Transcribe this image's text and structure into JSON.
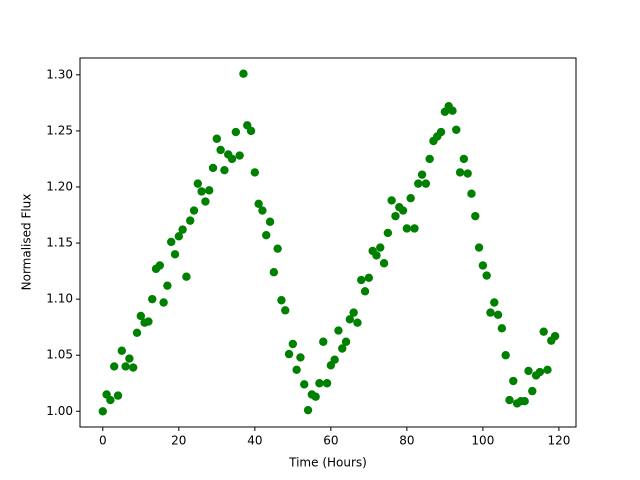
{
  "chart_data": {
    "type": "scatter",
    "xlabel": "Time (Hours)",
    "ylabel": "Normalised Flux",
    "color": "green",
    "xlim": [
      -6,
      124.5
    ],
    "ylim": [
      0.986,
      1.315
    ],
    "xticks": [
      0,
      20,
      40,
      60,
      80,
      100,
      120
    ],
    "yticks": [
      {
        "value": 1.0,
        "label": "1.00"
      },
      {
        "value": 1.05,
        "label": "1.05"
      },
      {
        "value": 1.1,
        "label": "1.10"
      },
      {
        "value": 1.15,
        "label": "1.15"
      },
      {
        "value": 1.2,
        "label": "1.20"
      },
      {
        "value": 1.25,
        "label": "1.25"
      },
      {
        "value": 1.3,
        "label": "1.30"
      }
    ],
    "x": [
      0,
      1,
      2,
      3,
      4,
      5,
      6,
      7,
      8,
      9,
      10,
      11,
      12,
      13,
      14,
      15,
      16,
      17,
      18,
      19,
      20,
      21,
      22,
      23,
      24,
      25,
      26,
      27,
      28,
      29,
      30,
      31,
      32,
      33,
      34,
      35,
      36,
      37,
      38,
      39,
      40,
      41,
      42,
      43,
      44,
      45,
      46,
      47,
      48,
      49,
      50,
      51,
      52,
      53,
      54,
      55,
      56,
      57,
      58,
      59,
      60,
      61,
      62,
      63,
      64,
      65,
      66,
      67,
      68,
      69,
      70,
      71,
      72,
      73,
      74,
      75,
      76,
      77,
      78,
      79,
      80,
      81,
      82,
      83,
      84,
      85,
      86,
      87,
      88,
      89,
      90,
      91,
      92,
      93,
      94,
      95,
      96,
      97,
      98,
      99,
      100,
      101,
      102,
      103,
      104,
      105,
      106,
      107,
      108,
      109,
      110,
      111,
      112,
      113,
      114,
      115,
      116,
      117,
      118,
      119
    ],
    "y": [
      1.0,
      1.015,
      1.01,
      1.04,
      1.014,
      1.054,
      1.04,
      1.047,
      1.039,
      1.07,
      1.085,
      1.079,
      1.08,
      1.1,
      1.127,
      1.13,
      1.097,
      1.112,
      1.151,
      1.14,
      1.156,
      1.162,
      1.12,
      1.17,
      1.179,
      1.203,
      1.196,
      1.187,
      1.197,
      1.217,
      1.243,
      1.233,
      1.215,
      1.229,
      1.225,
      1.249,
      1.228,
      1.301,
      1.255,
      1.25,
      1.213,
      1.185,
      1.179,
      1.157,
      1.169,
      1.124,
      1.145,
      1.099,
      1.09,
      1.051,
      1.06,
      1.037,
      1.048,
      1.024,
      1.001,
      1.015,
      1.013,
      1.025,
      1.062,
      1.025,
      1.041,
      1.046,
      1.072,
      1.056,
      1.062,
      1.082,
      1.088,
      1.079,
      1.117,
      1.107,
      1.119,
      1.143,
      1.139,
      1.146,
      1.132,
      1.159,
      1.188,
      1.174,
      1.182,
      1.179,
      1.163,
      1.19,
      1.163,
      1.203,
      1.211,
      1.203,
      1.225,
      1.241,
      1.245,
      1.249,
      1.267,
      1.272,
      1.268,
      1.251,
      1.213,
      1.225,
      1.212,
      1.194,
      1.174,
      1.146,
      1.13,
      1.121,
      1.088,
      1.097,
      1.086,
      1.074,
      1.05,
      1.01,
      1.027,
      1.007,
      1.009,
      1.009,
      1.036,
      1.018,
      1.032,
      1.035,
      1.071,
      1.037,
      1.063,
      1.067
    ]
  }
}
